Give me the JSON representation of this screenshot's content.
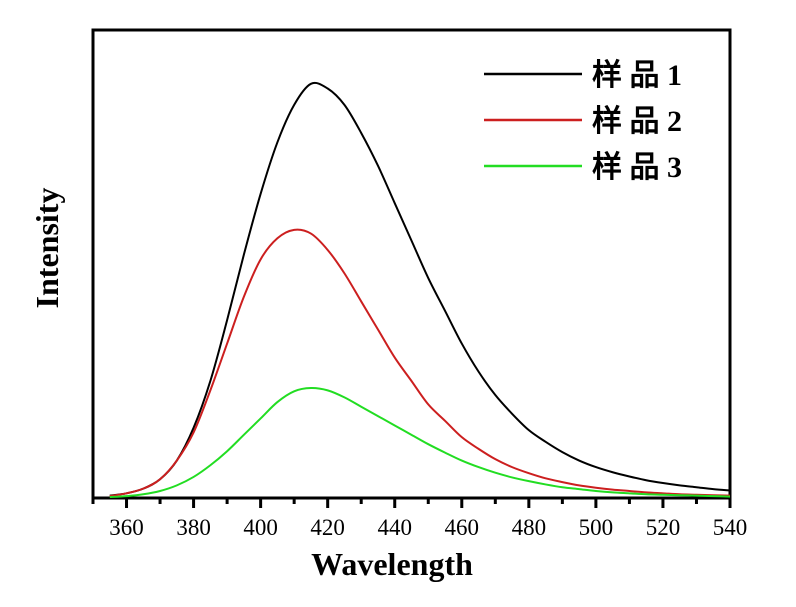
{
  "chart_data": {
    "type": "line",
    "title": "",
    "xlabel": "Wavelength",
    "ylabel": "Intensity",
    "xlim": [
      350,
      540
    ],
    "ylim": [
      0,
      1
    ],
    "x_ticks": [
      360,
      380,
      400,
      420,
      440,
      460,
      480,
      500,
      520,
      540
    ],
    "x_tick_labels": [
      "360",
      "380",
      "400",
      "420",
      "440",
      "460",
      "480",
      "500",
      "520",
      "540"
    ],
    "y_ticks_shown": false,
    "grid": false,
    "legend_position": "top-right",
    "x": [
      355,
      360,
      365,
      370,
      375,
      380,
      385,
      390,
      395,
      400,
      405,
      410,
      415,
      420,
      425,
      430,
      435,
      440,
      445,
      450,
      455,
      460,
      465,
      470,
      475,
      480,
      485,
      490,
      495,
      500,
      505,
      510,
      515,
      520,
      525,
      530,
      535,
      540
    ],
    "series": [
      {
        "name": "样 品 1",
        "color": "#000000",
        "values": [
          0.005,
          0.01,
          0.02,
          0.04,
          0.08,
          0.15,
          0.25,
          0.38,
          0.52,
          0.65,
          0.76,
          0.84,
          0.885,
          0.875,
          0.84,
          0.78,
          0.71,
          0.63,
          0.55,
          0.47,
          0.4,
          0.33,
          0.27,
          0.22,
          0.18,
          0.145,
          0.12,
          0.098,
          0.08,
          0.066,
          0.055,
          0.046,
          0.038,
          0.032,
          0.027,
          0.023,
          0.019,
          0.016
        ]
      },
      {
        "name": "样 品 2",
        "color": "#cc1f1f",
        "values": [
          0.004,
          0.01,
          0.02,
          0.04,
          0.08,
          0.14,
          0.23,
          0.33,
          0.43,
          0.51,
          0.555,
          0.573,
          0.565,
          0.53,
          0.48,
          0.42,
          0.36,
          0.3,
          0.25,
          0.2,
          0.165,
          0.13,
          0.105,
          0.083,
          0.066,
          0.053,
          0.042,
          0.034,
          0.027,
          0.022,
          0.018,
          0.015,
          0.012,
          0.01,
          0.008,
          0.007,
          0.006,
          0.005
        ]
      },
      {
        "name": "样 品 3",
        "color": "#22dd22",
        "values": [
          0.002,
          0.004,
          0.008,
          0.015,
          0.027,
          0.045,
          0.07,
          0.1,
          0.135,
          0.17,
          0.205,
          0.228,
          0.235,
          0.23,
          0.215,
          0.195,
          0.175,
          0.155,
          0.135,
          0.115,
          0.097,
          0.08,
          0.066,
          0.054,
          0.044,
          0.036,
          0.029,
          0.023,
          0.019,
          0.015,
          0.012,
          0.01,
          0.008,
          0.007,
          0.006,
          0.005,
          0.004,
          0.003
        ]
      }
    ]
  }
}
